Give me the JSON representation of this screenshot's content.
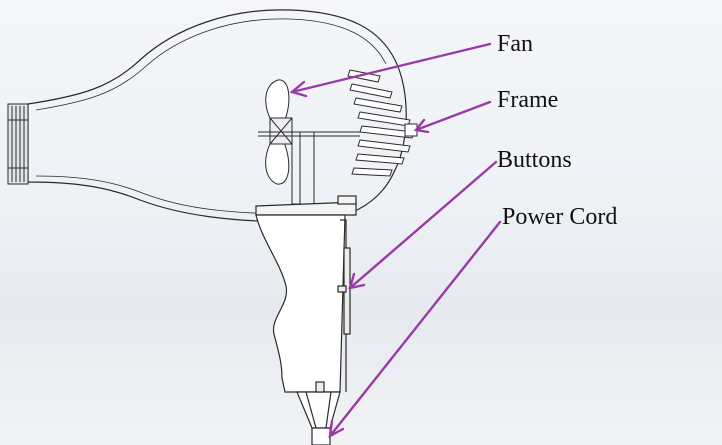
{
  "labels": {
    "fan": "Fan",
    "frame": "Frame",
    "buttons": "Buttons",
    "power_cord": "Power Cord"
  },
  "colors": {
    "arrow": "#9a3aa6",
    "outline": "#2a2a2a",
    "text": "#111111"
  }
}
